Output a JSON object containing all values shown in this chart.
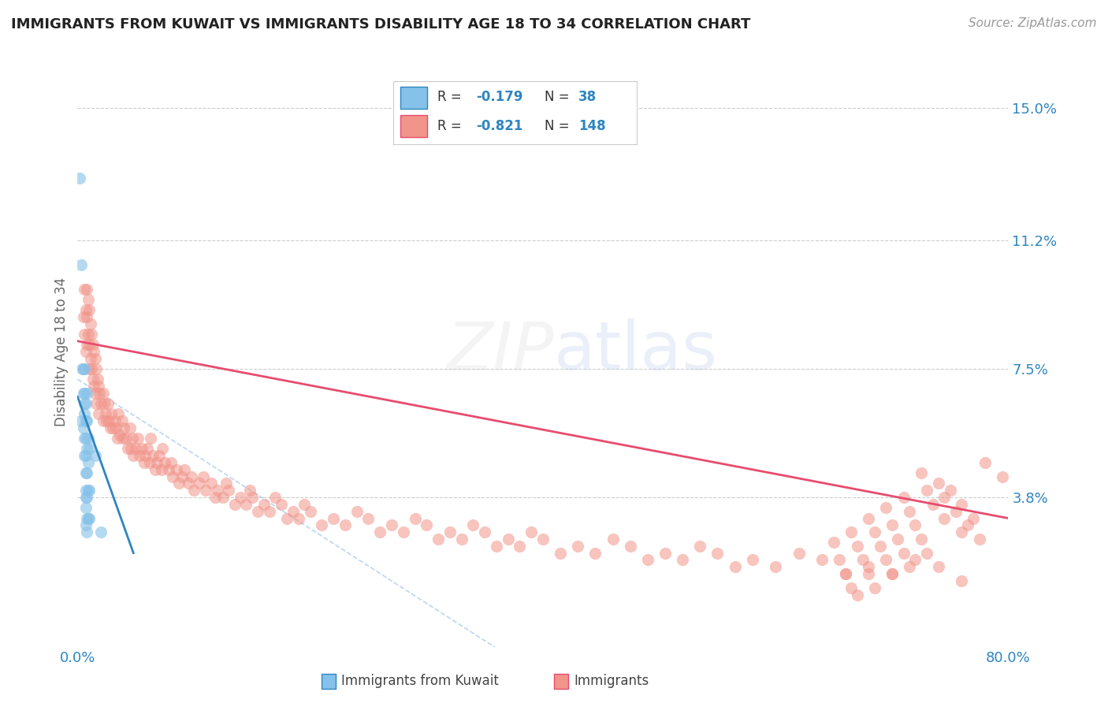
{
  "title": "IMMIGRANTS FROM KUWAIT VS IMMIGRANTS DISABILITY AGE 18 TO 34 CORRELATION CHART",
  "source": "Source: ZipAtlas.com",
  "ylabel": "Disability Age 18 to 34",
  "ytick_vals": [
    0.038,
    0.075,
    0.112,
    0.15
  ],
  "ytick_labels": [
    "3.8%",
    "7.5%",
    "11.2%",
    "15.0%"
  ],
  "xlim": [
    0.0,
    0.8
  ],
  "ylim": [
    -0.005,
    0.165
  ],
  "color_blue": "#85c1e9",
  "color_pink": "#f1948a",
  "color_blue_line": "#2e86c1",
  "color_pink_line": "#e74c6e",
  "color_text_blue": "#2e86c1",
  "background_color": "#ffffff",
  "blue_trend_x": [
    0.0,
    0.048
  ],
  "blue_trend_y": [
    0.067,
    0.022
  ],
  "pink_trend_x": [
    0.0,
    0.8
  ],
  "pink_trend_y": [
    0.083,
    0.032
  ],
  "ref_line_x": [
    0.0,
    0.8
  ],
  "ref_line_y": [
    0.072,
    -0.1
  ],
  "blue_scatter_x": [
    0.002,
    0.003,
    0.003,
    0.004,
    0.005,
    0.005,
    0.005,
    0.006,
    0.006,
    0.006,
    0.006,
    0.006,
    0.006,
    0.007,
    0.007,
    0.007,
    0.007,
    0.007,
    0.007,
    0.007,
    0.007,
    0.007,
    0.008,
    0.008,
    0.008,
    0.008,
    0.008,
    0.008,
    0.008,
    0.009,
    0.009,
    0.009,
    0.009,
    0.01,
    0.01,
    0.01,
    0.015,
    0.02
  ],
  "blue_scatter_y": [
    0.13,
    0.105,
    0.06,
    0.075,
    0.075,
    0.068,
    0.058,
    0.075,
    0.068,
    0.062,
    0.055,
    0.05,
    0.065,
    0.065,
    0.06,
    0.055,
    0.05,
    0.045,
    0.04,
    0.038,
    0.035,
    0.03,
    0.068,
    0.06,
    0.052,
    0.045,
    0.038,
    0.032,
    0.028,
    0.055,
    0.048,
    0.04,
    0.032,
    0.052,
    0.04,
    0.032,
    0.05,
    0.028
  ],
  "pink_scatter_x": [
    0.005,
    0.006,
    0.006,
    0.007,
    0.007,
    0.008,
    0.008,
    0.008,
    0.009,
    0.009,
    0.01,
    0.01,
    0.01,
    0.011,
    0.011,
    0.012,
    0.012,
    0.013,
    0.013,
    0.014,
    0.014,
    0.015,
    0.015,
    0.016,
    0.016,
    0.017,
    0.018,
    0.018,
    0.019,
    0.02,
    0.022,
    0.022,
    0.023,
    0.024,
    0.025,
    0.026,
    0.027,
    0.028,
    0.029,
    0.03,
    0.032,
    0.033,
    0.034,
    0.035,
    0.036,
    0.038,
    0.039,
    0.04,
    0.042,
    0.043,
    0.045,
    0.046,
    0.047,
    0.048,
    0.05,
    0.052,
    0.053,
    0.055,
    0.057,
    0.058,
    0.06,
    0.062,
    0.063,
    0.065,
    0.067,
    0.068,
    0.07,
    0.072,
    0.073,
    0.075,
    0.078,
    0.08,
    0.082,
    0.085,
    0.087,
    0.09,
    0.092,
    0.095,
    0.098,
    0.1,
    0.105,
    0.108,
    0.11,
    0.115,
    0.118,
    0.12,
    0.125,
    0.128,
    0.13,
    0.135,
    0.14,
    0.145,
    0.148,
    0.15,
    0.155,
    0.16,
    0.165,
    0.17,
    0.175,
    0.18,
    0.185,
    0.19,
    0.195,
    0.2,
    0.21,
    0.22,
    0.23,
    0.24,
    0.25,
    0.26,
    0.27,
    0.28,
    0.29,
    0.3,
    0.31,
    0.32,
    0.33,
    0.34,
    0.35,
    0.36,
    0.37,
    0.38,
    0.39,
    0.4,
    0.415,
    0.43,
    0.445,
    0.46,
    0.475,
    0.49,
    0.505,
    0.52,
    0.535,
    0.55,
    0.565,
    0.58,
    0.6,
    0.62,
    0.64,
    0.66,
    0.68,
    0.7,
    0.72,
    0.74,
    0.76,
    0.78,
    0.795,
    0.75,
    0.76,
    0.77,
    0.74,
    0.745,
    0.755,
    0.765,
    0.775,
    0.725,
    0.73,
    0.735,
    0.745,
    0.76,
    0.71,
    0.715,
    0.72,
    0.725,
    0.73,
    0.695,
    0.7,
    0.705,
    0.71,
    0.715,
    0.68,
    0.685,
    0.69,
    0.695,
    0.7,
    0.665,
    0.67,
    0.675,
    0.68,
    0.685,
    0.65,
    0.655,
    0.66,
    0.665,
    0.67
  ],
  "pink_scatter_y": [
    0.09,
    0.098,
    0.085,
    0.092,
    0.08,
    0.098,
    0.09,
    0.082,
    0.095,
    0.085,
    0.092,
    0.082,
    0.075,
    0.088,
    0.078,
    0.085,
    0.075,
    0.082,
    0.072,
    0.08,
    0.07,
    0.078,
    0.068,
    0.075,
    0.065,
    0.072,
    0.07,
    0.062,
    0.068,
    0.065,
    0.068,
    0.06,
    0.065,
    0.062,
    0.06,
    0.065,
    0.06,
    0.058,
    0.062,
    0.058,
    0.06,
    0.058,
    0.055,
    0.062,
    0.056,
    0.06,
    0.055,
    0.058,
    0.055,
    0.052,
    0.058,
    0.052,
    0.055,
    0.05,
    0.052,
    0.055,
    0.05,
    0.052,
    0.048,
    0.05,
    0.052,
    0.048,
    0.055,
    0.05,
    0.046,
    0.048,
    0.05,
    0.046,
    0.052,
    0.048,
    0.046,
    0.048,
    0.044,
    0.046,
    0.042,
    0.044,
    0.046,
    0.042,
    0.044,
    0.04,
    0.042,
    0.044,
    0.04,
    0.042,
    0.038,
    0.04,
    0.038,
    0.042,
    0.04,
    0.036,
    0.038,
    0.036,
    0.04,
    0.038,
    0.034,
    0.036,
    0.034,
    0.038,
    0.036,
    0.032,
    0.034,
    0.032,
    0.036,
    0.034,
    0.03,
    0.032,
    0.03,
    0.034,
    0.032,
    0.028,
    0.03,
    0.028,
    0.032,
    0.03,
    0.026,
    0.028,
    0.026,
    0.03,
    0.028,
    0.024,
    0.026,
    0.024,
    0.028,
    0.026,
    0.022,
    0.024,
    0.022,
    0.026,
    0.024,
    0.02,
    0.022,
    0.02,
    0.024,
    0.022,
    0.018,
    0.02,
    0.018,
    0.022,
    0.02,
    0.016,
    0.018,
    0.016,
    0.02,
    0.018,
    0.014,
    0.048,
    0.044,
    0.04,
    0.036,
    0.032,
    0.042,
    0.038,
    0.034,
    0.03,
    0.026,
    0.045,
    0.04,
    0.036,
    0.032,
    0.028,
    0.038,
    0.034,
    0.03,
    0.026,
    0.022,
    0.035,
    0.03,
    0.026,
    0.022,
    0.018,
    0.032,
    0.028,
    0.024,
    0.02,
    0.016,
    0.028,
    0.024,
    0.02,
    0.016,
    0.012,
    0.025,
    0.02,
    0.016,
    0.012,
    0.01
  ]
}
